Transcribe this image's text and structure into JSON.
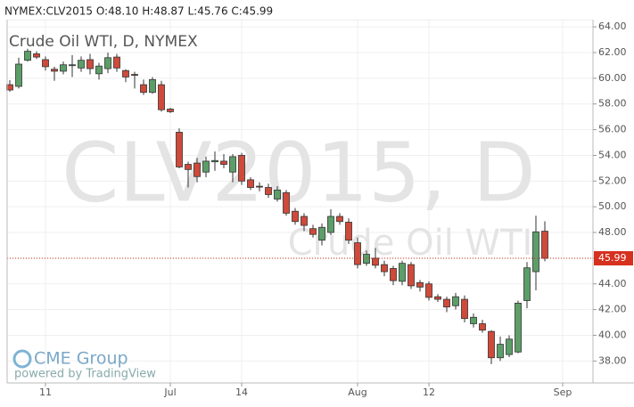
{
  "chart_data": {
    "type": "candlestick",
    "header": "NYMEX:CLV2015 O:48.10 H:48.87 L:45.76 C:45.99",
    "title": "Crude Oil WTI, D, NYMEX",
    "watermark": "CLV2015, D",
    "watermark_subtitle": "Crude Oil WTI",
    "categories": [
      null,
      null,
      null,
      null,
      "11",
      null,
      null,
      null,
      null,
      null,
      null,
      null,
      null,
      null,
      null,
      null,
      null,
      null,
      "Jul",
      null,
      null,
      null,
      null,
      null,
      null,
      null,
      "14",
      null,
      null,
      null,
      null,
      null,
      null,
      null,
      null,
      null,
      null,
      null,
      null,
      "Aug",
      null,
      null,
      null,
      null,
      null,
      null,
      null,
      "12",
      null,
      null,
      null,
      null,
      null,
      null,
      null,
      null,
      null,
      null,
      null,
      null,
      null,
      null,
      "Sep"
    ],
    "series": [
      {
        "name": "open",
        "values": [
          59.5,
          59.37,
          61.4,
          61.9,
          61.45,
          60.7,
          60.55,
          61.0,
          60.8,
          61.45,
          60.35,
          60.75,
          61.65,
          60.6,
          60.3,
          59.5,
          58.9,
          59.5,
          57.6,
          55.8,
          53.3,
          53.4,
          52.7,
          53.5,
          53.55,
          52.7,
          54.0,
          52.1,
          51.6,
          51.5,
          50.6,
          51.1,
          49.65,
          49.25,
          48.3,
          47.4,
          48.0,
          49.25,
          48.8,
          47.2,
          45.6,
          46.0,
          45.5,
          45.2,
          44.2,
          45.5,
          44.1,
          44.0,
          43.0,
          42.8,
          42.3,
          42.8,
          40.9,
          40.9,
          40.3,
          38.25,
          38.5,
          38.7,
          42.7,
          44.95,
          48.1,
          null,
          null
        ]
      },
      {
        "name": "high",
        "values": [
          59.85,
          61.6,
          62.3,
          62.1,
          61.7,
          60.9,
          61.3,
          61.8,
          61.7,
          61.9,
          61.2,
          62.0,
          61.9,
          60.7,
          60.5,
          59.9,
          60.1,
          59.8,
          57.7,
          56.1,
          53.5,
          53.8,
          53.9,
          54.3,
          54.1,
          54.1,
          54.2,
          52.3,
          51.9,
          51.8,
          51.6,
          51.3,
          49.9,
          49.5,
          48.6,
          48.7,
          49.8,
          49.5,
          49.1,
          47.6,
          46.6,
          46.8,
          45.8,
          45.4,
          45.8,
          45.7,
          44.3,
          44.2,
          43.2,
          43.0,
          43.3,
          43.1,
          41.7,
          41.2,
          40.4,
          39.9,
          40.0,
          42.7,
          45.7,
          49.3,
          48.87,
          null,
          null
        ]
      },
      {
        "name": "low",
        "values": [
          58.95,
          59.2,
          61.3,
          61.5,
          60.6,
          59.8,
          60.3,
          60.1,
          60.5,
          60.3,
          59.9,
          60.4,
          60.5,
          59.7,
          59.2,
          58.7,
          58.8,
          57.4,
          57.3,
          53.0,
          51.5,
          51.9,
          52.3,
          52.8,
          53.0,
          51.9,
          51.7,
          51.3,
          51.2,
          50.7,
          50.4,
          49.3,
          48.6,
          48.1,
          47.6,
          47.0,
          47.8,
          48.6,
          47.1,
          45.2,
          45.4,
          45.2,
          44.6,
          43.9,
          43.9,
          43.6,
          43.4,
          42.7,
          42.6,
          41.8,
          42.0,
          41.0,
          40.6,
          40.2,
          37.75,
          38.0,
          38.3,
          38.6,
          42.1,
          43.5,
          45.76,
          null,
          null
        ]
      },
      {
        "name": "close",
        "values": [
          59.09,
          61.1,
          62.1,
          61.65,
          60.9,
          60.55,
          61.05,
          61.05,
          61.4,
          60.75,
          60.95,
          61.6,
          60.8,
          60.1,
          60.25,
          58.9,
          59.9,
          57.55,
          57.4,
          53.1,
          52.9,
          52.35,
          53.55,
          53.6,
          53.3,
          53.9,
          52.0,
          51.5,
          51.55,
          50.95,
          51.3,
          49.5,
          48.85,
          48.55,
          47.85,
          48.4,
          49.25,
          48.85,
          47.4,
          45.5,
          46.3,
          45.45,
          44.95,
          44.25,
          45.6,
          43.85,
          43.75,
          42.95,
          42.8,
          42.2,
          43.0,
          41.3,
          41.4,
          40.4,
          38.25,
          39.3,
          39.7,
          42.5,
          45.25,
          48.05,
          45.99,
          null,
          null
        ]
      }
    ],
    "up_color": "#5c9e68",
    "down_color": "#cf4a3a",
    "last_price": 45.99,
    "last_price_color": "#d6301f",
    "ylim": [
      36.29,
      64.15
    ],
    "yticks": [
      {
        "value": 38,
        "label": "38.00"
      },
      {
        "value": 40,
        "label": "40.00"
      },
      {
        "value": 42,
        "label": "42.00"
      },
      {
        "value": 44,
        "label": "44.00"
      },
      {
        "value": 46,
        "label": "46.00"
      },
      {
        "value": 48,
        "label": "48.00"
      },
      {
        "value": 50,
        "label": "50.00"
      },
      {
        "value": 52,
        "label": "52.00"
      },
      {
        "value": 54,
        "label": "54.00"
      },
      {
        "value": 56,
        "label": "56.00"
      },
      {
        "value": 58,
        "label": "58.00"
      },
      {
        "value": 60,
        "label": "60.00"
      },
      {
        "value": 62,
        "label": "62.00"
      },
      {
        "value": 64,
        "label": "64.00"
      }
    ],
    "grid": true
  },
  "branding": {
    "logo": "CME Group",
    "powered": "powered by TradingView"
  }
}
